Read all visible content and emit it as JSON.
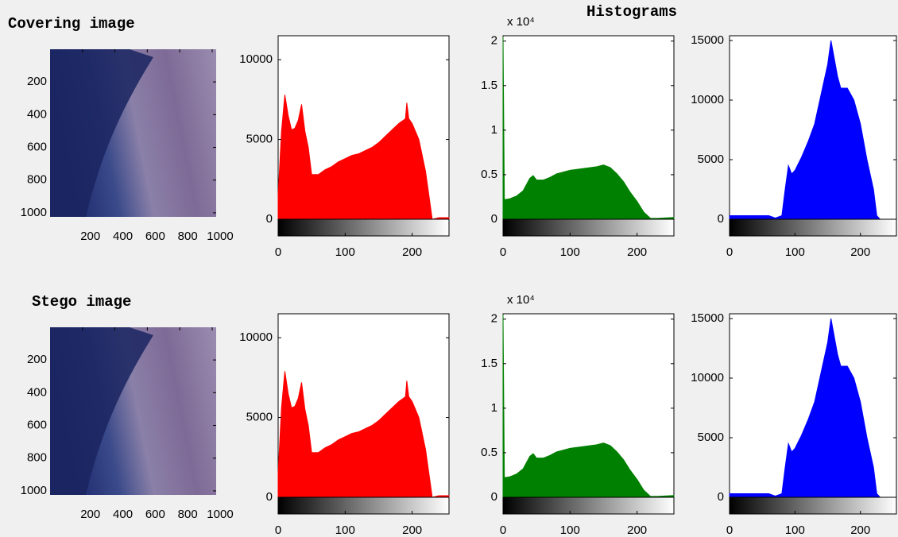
{
  "figure_title": "Histograms",
  "chart_data": [
    {
      "type": "image",
      "title": "Covering image",
      "xlim": [
        0.5,
        1024.5
      ],
      "ylim": [
        0.5,
        1024.5
      ],
      "xticks": [
        200,
        400,
        600,
        800,
        1000
      ],
      "yticks": [
        200,
        400,
        600,
        800,
        1000
      ]
    },
    {
      "type": "area",
      "color": "#ff0000",
      "xlim": [
        0,
        255
      ],
      "ylim": [
        0,
        11500
      ],
      "xticks": [
        0,
        100,
        200
      ],
      "yticks": [
        0,
        5000,
        10000
      ],
      "x": [
        0,
        5,
        10,
        15,
        20,
        25,
        30,
        35,
        40,
        45,
        50,
        60,
        70,
        80,
        90,
        100,
        110,
        120,
        130,
        140,
        150,
        160,
        170,
        180,
        190,
        192,
        195,
        200,
        210,
        220,
        225,
        230,
        240,
        255
      ],
      "values": [
        1500,
        5500,
        7800,
        6500,
        5600,
        5700,
        6200,
        7200,
        5500,
        4500,
        2800,
        2800,
        3100,
        3300,
        3600,
        3800,
        4000,
        4100,
        4300,
        4500,
        4800,
        5200,
        5600,
        6000,
        6300,
        7300,
        6300,
        6000,
        5000,
        3000,
        1500,
        0,
        100,
        100
      ]
    },
    {
      "type": "area",
      "color": "#008000",
      "xlim": [
        0,
        255
      ],
      "ylim": [
        0,
        20600
      ],
      "xticks": [
        0,
        100,
        200
      ],
      "yticks": [
        0,
        {
          "value": 5000,
          "label": "0.5"
        },
        {
          "value": 10000,
          "label": "1"
        },
        {
          "value": 15000,
          "label": "1.5"
        },
        {
          "value": 20000,
          "label": "2"
        }
      ],
      "y_exponent_label": "x 10⁴",
      "x": [
        0,
        2,
        10,
        20,
        30,
        40,
        45,
        50,
        60,
        70,
        80,
        90,
        100,
        110,
        120,
        130,
        140,
        150,
        160,
        170,
        180,
        190,
        200,
        210,
        220,
        230,
        255
      ],
      "values": [
        20500,
        2200,
        2300,
        2600,
        3200,
        4600,
        4900,
        4400,
        4400,
        4700,
        5100,
        5300,
        5500,
        5600,
        5700,
        5800,
        5900,
        6100,
        5800,
        5100,
        4200,
        3000,
        2000,
        800,
        100,
        100,
        200
      ]
    },
    {
      "type": "area",
      "color": "#0000ff",
      "xlim": [
        0,
        255
      ],
      "ylim": [
        0,
        15400
      ],
      "xticks": [
        0,
        100,
        200
      ],
      "yticks": [
        0,
        5000,
        10000,
        15000
      ],
      "x": [
        0,
        60,
        70,
        80,
        85,
        90,
        95,
        100,
        110,
        120,
        130,
        140,
        150,
        155,
        160,
        165,
        170,
        180,
        190,
        200,
        210,
        220,
        225,
        230,
        255
      ],
      "values": [
        300,
        300,
        100,
        300,
        2500,
        4500,
        3800,
        4100,
        5200,
        6500,
        8000,
        10500,
        13000,
        15000,
        13500,
        12000,
        11000,
        11000,
        10000,
        8000,
        5000,
        2500,
        300,
        0,
        0
      ]
    },
    {
      "type": "image",
      "title": "Stego image",
      "xlim": [
        0.5,
        1024.5
      ],
      "ylim": [
        0.5,
        1024.5
      ],
      "xticks": [
        200,
        400,
        600,
        800,
        1000
      ],
      "yticks": [
        200,
        400,
        600,
        800,
        1000
      ]
    },
    {
      "type": "area",
      "color": "#ff0000",
      "xlim": [
        0,
        255
      ],
      "ylim": [
        0,
        11500
      ],
      "xticks": [
        0,
        100,
        200
      ],
      "yticks": [
        0,
        5000,
        10000
      ],
      "x": [
        0,
        5,
        10,
        15,
        20,
        25,
        30,
        35,
        40,
        45,
        50,
        60,
        70,
        80,
        90,
        100,
        110,
        120,
        130,
        140,
        150,
        160,
        170,
        180,
        190,
        192,
        195,
        200,
        210,
        220,
        225,
        230,
        240,
        255
      ],
      "values": [
        1500,
        5600,
        7900,
        6500,
        5600,
        5700,
        6200,
        7200,
        5500,
        4500,
        2800,
        2800,
        3100,
        3300,
        3600,
        3800,
        4000,
        4100,
        4300,
        4500,
        4800,
        5200,
        5600,
        6000,
        6300,
        7300,
        6300,
        6000,
        5000,
        3000,
        1500,
        0,
        100,
        100
      ]
    },
    {
      "type": "area",
      "color": "#008000",
      "xlim": [
        0,
        255
      ],
      "ylim": [
        0,
        20600
      ],
      "xticks": [
        0,
        100,
        200
      ],
      "yticks": [
        0,
        {
          "value": 5000,
          "label": "0.5"
        },
        {
          "value": 10000,
          "label": "1"
        },
        {
          "value": 15000,
          "label": "1.5"
        },
        {
          "value": 20000,
          "label": "2"
        }
      ],
      "y_exponent_label": "x 10⁴",
      "x": [
        0,
        2,
        10,
        20,
        30,
        40,
        45,
        50,
        60,
        70,
        80,
        90,
        100,
        110,
        120,
        130,
        140,
        150,
        160,
        170,
        180,
        190,
        200,
        210,
        220,
        230,
        255
      ],
      "values": [
        20500,
        2200,
        2300,
        2600,
        3200,
        4600,
        4900,
        4400,
        4400,
        4700,
        5100,
        5300,
        5500,
        5600,
        5700,
        5800,
        5900,
        6100,
        5800,
        5100,
        4200,
        3000,
        2000,
        800,
        100,
        100,
        200
      ]
    },
    {
      "type": "area",
      "color": "#0000ff",
      "xlim": [
        0,
        255
      ],
      "ylim": [
        0,
        15400
      ],
      "xticks": [
        0,
        100,
        200
      ],
      "yticks": [
        0,
        5000,
        10000,
        15000
      ],
      "x": [
        0,
        60,
        70,
        80,
        85,
        90,
        95,
        100,
        110,
        120,
        130,
        140,
        150,
        155,
        160,
        165,
        170,
        180,
        190,
        200,
        210,
        220,
        225,
        230,
        255
      ],
      "values": [
        300,
        300,
        100,
        300,
        2500,
        4500,
        3800,
        4100,
        5200,
        6500,
        8000,
        10500,
        13000,
        15000,
        13500,
        12000,
        11000,
        11000,
        10000,
        8000,
        5000,
        2500,
        300,
        0,
        0
      ]
    }
  ]
}
